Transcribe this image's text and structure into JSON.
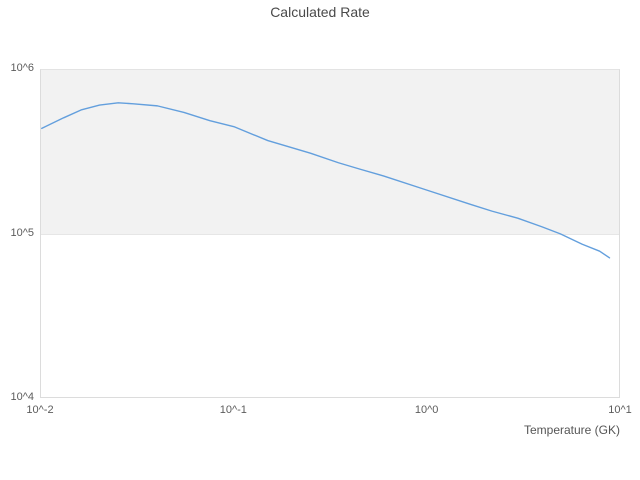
{
  "chart": {
    "title": "Calculated Rate",
    "x_axis_title": "Temperature (GK)"
  },
  "colors": {
    "series_line": "#639fdd",
    "plot_band_fill": "#f2f2f2",
    "plot_border": "#dcdcdc",
    "title_text": "#4a4a4a",
    "tick_text": "#5c5c5c",
    "background": "#ffffff"
  },
  "chart_data": {
    "type": "line",
    "title": "Calculated Rate",
    "xlabel": "Temperature (GK)",
    "ylabel": "",
    "x_scale": "log",
    "y_scale": "log",
    "xlim": [
      0.01,
      10
    ],
    "ylim": [
      10000,
      1000000
    ],
    "grid": false,
    "legend": "none",
    "x_ticks": [
      {
        "value": 0.01,
        "label": "10^-2"
      },
      {
        "value": 0.1,
        "label": "10^-1"
      },
      {
        "value": 1,
        "label": "10^0"
      },
      {
        "value": 10,
        "label": "10^1"
      }
    ],
    "y_ticks": [
      {
        "value": 10000,
        "label": "10^4"
      },
      {
        "value": 100000,
        "label": "10^5"
      },
      {
        "value": 1000000,
        "label": "10^6"
      }
    ],
    "plot_band": {
      "from": 100000,
      "to": 1000000,
      "color": "#f2f2f2"
    },
    "series": [
      {
        "name": "Calculated Rate",
        "color": "#639fdd",
        "x": [
          0.01,
          0.013,
          0.016,
          0.02,
          0.025,
          0.03,
          0.04,
          0.055,
          0.075,
          0.1,
          0.15,
          0.25,
          0.35,
          0.45,
          0.6,
          1.0,
          1.7,
          2.2,
          3.0,
          4.0,
          5.0,
          6.5,
          8.0,
          9.0
        ],
        "y": [
          440000,
          510000,
          570000,
          610000,
          630000,
          621000,
          603000,
          550000,
          490000,
          450000,
          370000,
          310000,
          271000,
          248000,
          225000,
          185000,
          151000,
          137000,
          124000,
          110000,
          99500,
          86000,
          78000,
          71000
        ]
      }
    ]
  }
}
